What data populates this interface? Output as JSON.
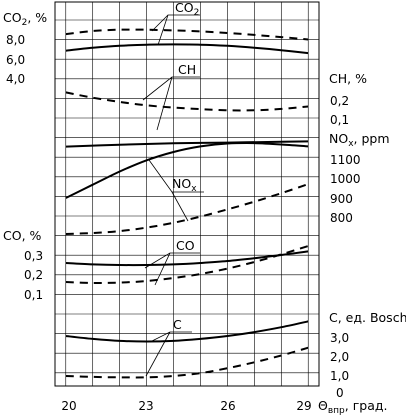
{
  "chart_data": {
    "type": "line",
    "x_axis": {
      "ticks": [
        20,
        23,
        26,
        29
      ],
      "xlim": [
        19.6,
        29.4
      ],
      "label_main": "Θ",
      "label_sub": "впр",
      "label_tail": ", град."
    },
    "panels": [
      {
        "key": "co2",
        "axis_side": "left",
        "axis_label_main": "CO",
        "axis_label_sub": "2",
        "axis_label_tail": ", %",
        "ticks": [
          "8,0",
          "6,0",
          "4,0"
        ],
        "tick_values": [
          8.0,
          6.0,
          4.0
        ],
        "curve_label_main": "CO",
        "curve_label_sub": "2",
        "series": [
          {
            "style": "dashed",
            "x": [
              20,
              21,
              22,
              23,
              24,
              25,
              26,
              27,
              28,
              29
            ],
            "y": [
              8.5,
              8.82,
              8.95,
              8.95,
              8.88,
              8.78,
              8.62,
              8.42,
              8.2,
              7.95
            ]
          },
          {
            "style": "solid",
            "x": [
              20,
              21,
              22,
              23,
              24,
              25,
              26,
              27,
              28,
              29
            ],
            "y": [
              6.8,
              7.1,
              7.3,
              7.42,
              7.45,
              7.42,
              7.3,
              7.1,
              6.85,
              6.55
            ]
          }
        ]
      },
      {
        "key": "ch",
        "axis_side": "right",
        "axis_label": "CH, %",
        "ticks": [
          "0,2",
          "0,1"
        ],
        "tick_values": [
          0.2,
          0.1
        ],
        "curve_label": "CH",
        "series": [
          {
            "style": "dashed",
            "x": [
              20,
              21,
              22,
              23,
              24,
              25,
              26,
              27,
              28,
              29
            ],
            "y": [
              0.24,
              0.212,
              0.19,
              0.172,
              0.16,
              0.152,
              0.146,
              0.146,
              0.153,
              0.166
            ]
          },
          {
            "style": "solid",
            "x": [
              20,
              22,
              24,
              26,
              28,
              29
            ],
            "y": [
              -0.045,
              -0.035,
              -0.028,
              -0.024,
              -0.02,
              -0.018
            ]
          }
        ]
      },
      {
        "key": "nox",
        "axis_side": "right",
        "axis_label_main": "NO",
        "axis_label_sub": "x",
        "axis_label_tail": ", ppm",
        "ticks": [
          "1100",
          "1000",
          "900",
          "800"
        ],
        "tick_values": [
          1100,
          1000,
          900,
          800
        ],
        "curve_label_main": "NO",
        "curve_label_sub": "x",
        "series": [
          {
            "style": "solid",
            "x": [
              20,
              21,
              22,
              23,
              24,
              25,
              26,
              27,
              28,
              29
            ],
            "y": [
              893,
              962,
              1030,
              1088,
              1131,
              1160,
              1175,
              1177,
              1170,
              1160
            ]
          },
          {
            "style": "dashed",
            "x": [
              20,
              21,
              22,
              23,
              24,
              25,
              26,
              27,
              28,
              29
            ],
            "y": [
              707,
              712,
              722,
              740,
              765,
              797,
              834,
              874,
              918,
              965
            ]
          }
        ]
      },
      {
        "key": "co",
        "axis_side": "left",
        "axis_label": "CO, %",
        "ticks": [
          "0,3",
          "0,2",
          "0,1"
        ],
        "tick_values": [
          0.3,
          0.2,
          0.1
        ],
        "curve_label": "CO",
        "series": [
          {
            "style": "solid",
            "x": [
              20,
              21,
              22,
              23,
              24,
              25,
              26,
              27,
              28,
              29
            ],
            "y": [
              0.26,
              0.253,
              0.25,
              0.25,
              0.253,
              0.26,
              0.27,
              0.284,
              0.3,
              0.318
            ]
          },
          {
            "style": "dashed",
            "x": [
              20,
              21,
              22,
              23,
              24,
              25,
              26,
              27,
              28,
              29
            ],
            "y": [
              0.165,
              0.16,
              0.162,
              0.17,
              0.185,
              0.205,
              0.232,
              0.265,
              0.303,
              0.345
            ]
          }
        ]
      },
      {
        "key": "c",
        "axis_side": "right",
        "axis_label": "C, ед. Bosch",
        "ticks": [
          "3,0",
          "2,0",
          "1,0",
          "0"
        ],
        "tick_values": [
          3.0,
          2.0,
          1.0,
          0
        ],
        "curve_label": "C",
        "series": [
          {
            "style": "solid",
            "x": [
              20,
              21,
              22,
              23,
              24,
              25,
              26,
              27,
              28,
              29
            ],
            "y": [
              3.0,
              2.85,
              2.75,
              2.72,
              2.75,
              2.85,
              3.0,
              3.2,
              3.45,
              3.75
            ]
          },
          {
            "style": "dashed",
            "x": [
              20,
              21,
              22,
              23,
              24,
              25,
              26,
              27,
              28,
              29
            ],
            "y": [
              0.95,
              0.9,
              0.88,
              0.88,
              0.95,
              1.1,
              1.35,
              1.65,
              2.0,
              2.4
            ]
          }
        ]
      }
    ]
  }
}
